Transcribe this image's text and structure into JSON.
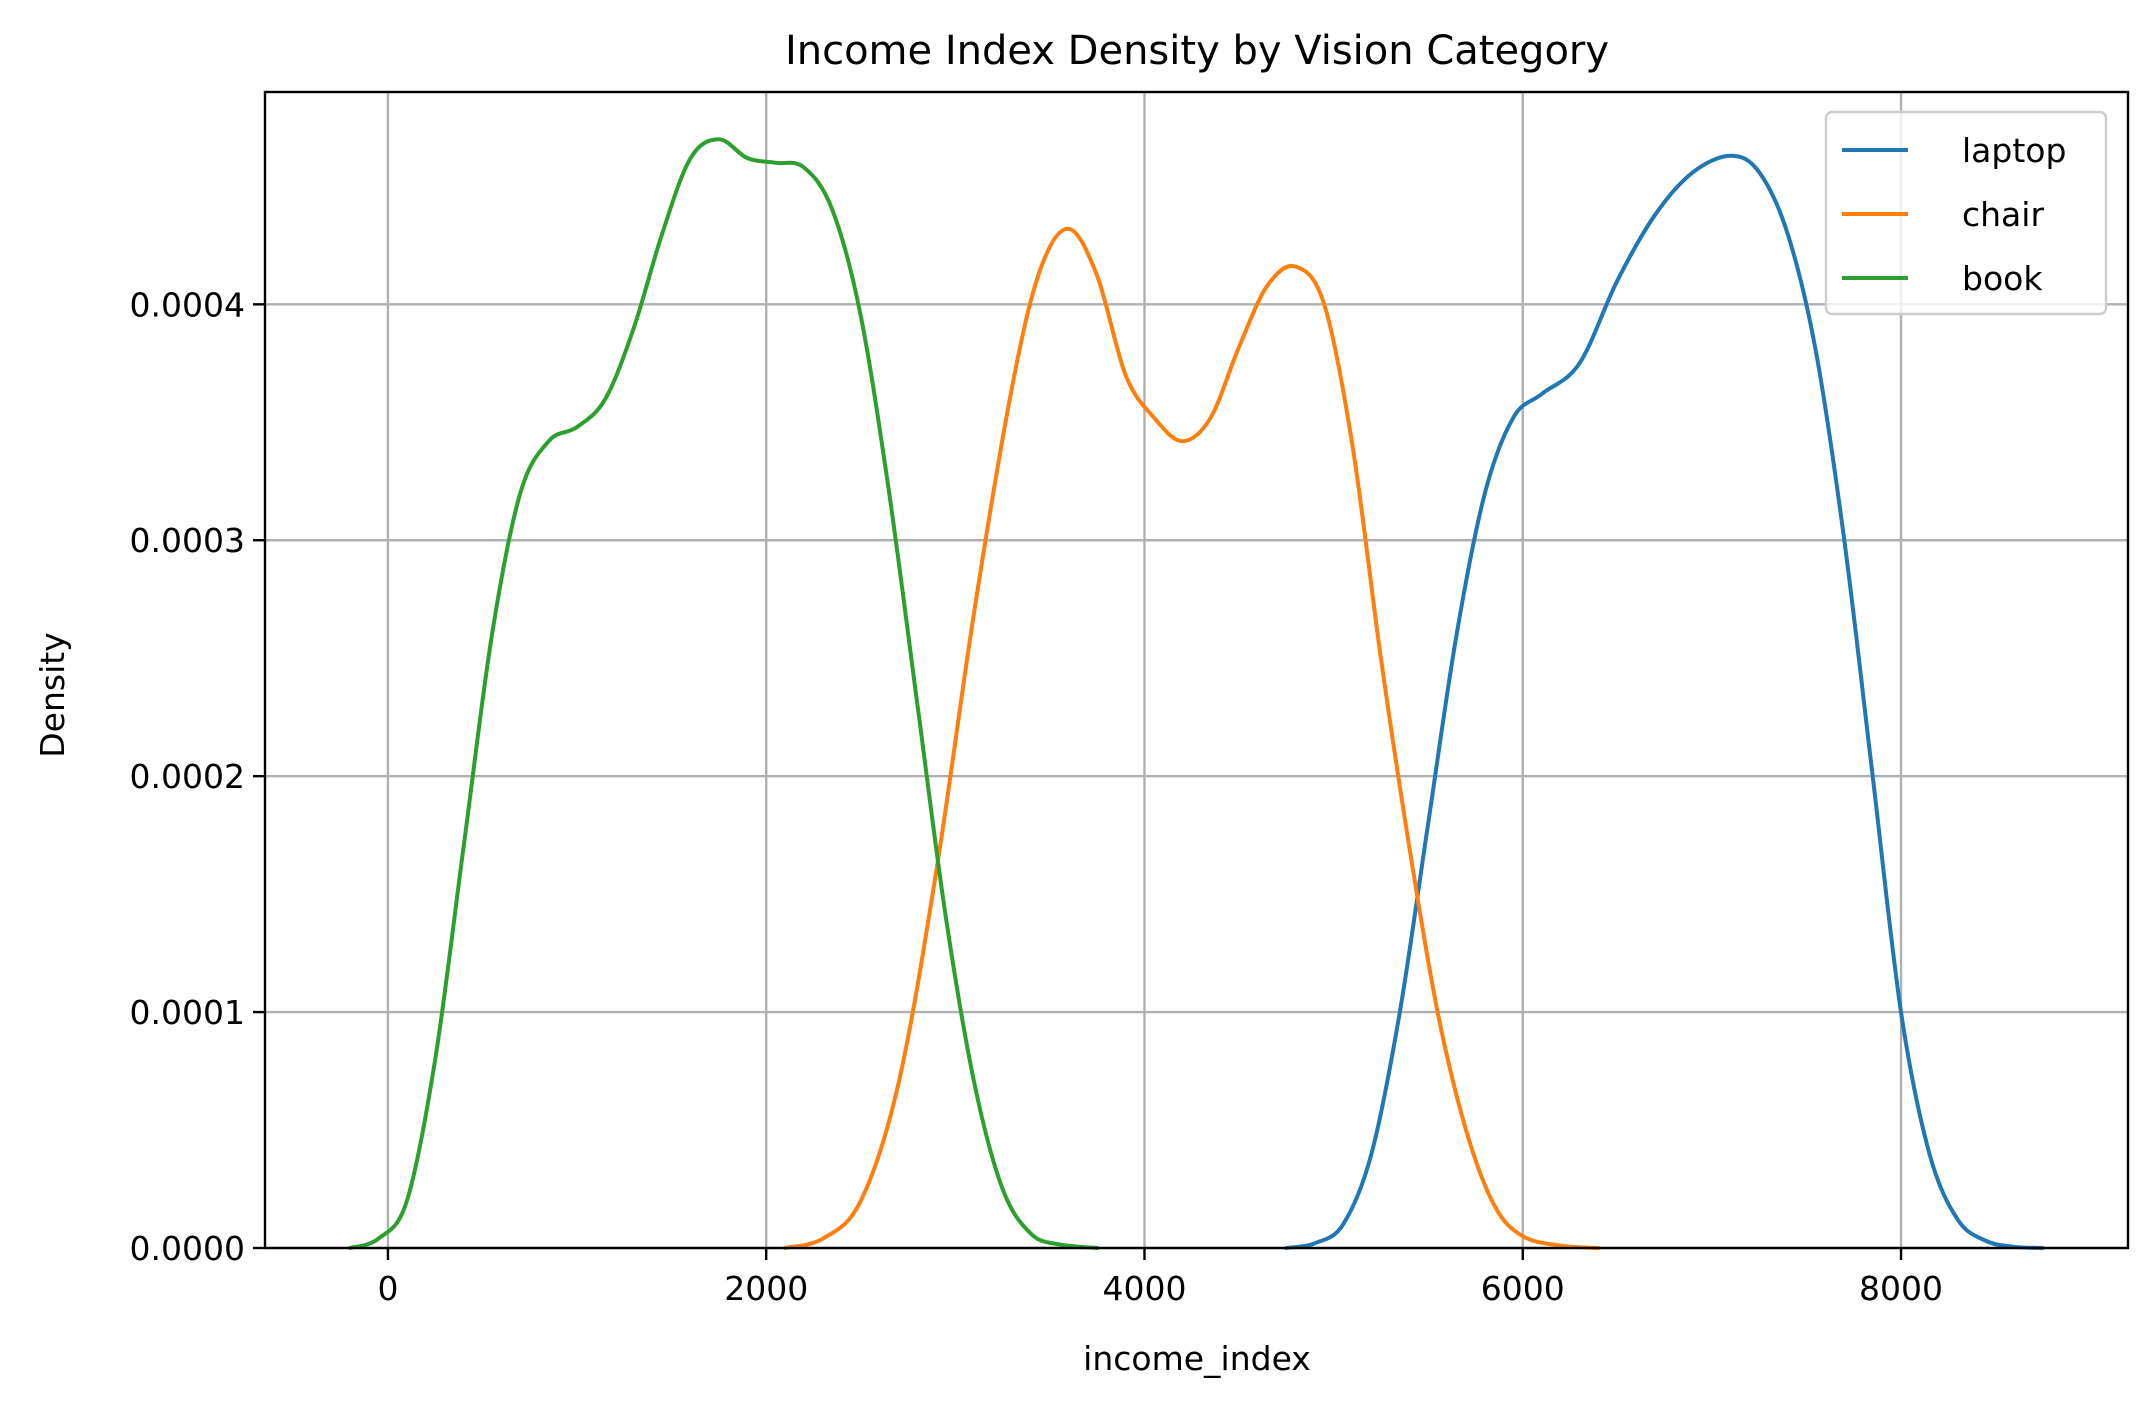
{
  "chart_data": {
    "type": "line",
    "title": "Income Index Density by Vision Category",
    "xlabel": "income_index",
    "ylabel": "Density",
    "xlim": [
      -650,
      9200
    ],
    "ylim": [
      0,
      0.00049
    ],
    "xticks": [
      0,
      2000,
      4000,
      6000,
      8000
    ],
    "xtick_labels": [
      "0",
      "2000",
      "4000",
      "6000",
      "8000"
    ],
    "yticks": [
      0,
      0.0001,
      0.0002,
      0.0003,
      0.0004
    ],
    "ytick_labels": [
      "0.0000",
      "0.0001",
      "0.0002",
      "0.0003",
      "0.0004"
    ],
    "grid": true,
    "legend_position": "top-right",
    "series": [
      {
        "name": "laptop",
        "color": "#1f77b4",
        "x": [
          4750,
          4900,
          5050,
          5200,
          5350,
          5500,
          5650,
          5800,
          5950,
          6100,
          6300,
          6500,
          6700,
          6900,
          7100,
          7250,
          7400,
          7550,
          7700,
          7850,
          8000,
          8150,
          8300,
          8450,
          8600,
          8750
        ],
        "y": [
          0.0,
          2e-06,
          1e-05,
          4e-05,
          0.0001,
          0.00018,
          0.00026,
          0.00032,
          0.000352,
          0.000362,
          0.000375,
          0.00041,
          0.000438,
          0.000456,
          0.000463,
          0.000456,
          0.00043,
          0.00038,
          0.0003,
          0.0002,
          0.0001,
          4e-05,
          1.2e-05,
          3e-06,
          5e-07,
          0.0
        ]
      },
      {
        "name": "chair",
        "color": "#ff7f0e",
        "x": [
          2100,
          2300,
          2500,
          2700,
          2900,
          3100,
          3300,
          3450,
          3600,
          3750,
          3900,
          4050,
          4200,
          4350,
          4500,
          4650,
          4800,
          4950,
          5100,
          5250,
          5400,
          5550,
          5700,
          5850,
          6000,
          6200,
          6400
        ],
        "y": [
          0.0,
          4e-06,
          2e-05,
          7e-05,
          0.00016,
          0.00027,
          0.000365,
          0.000415,
          0.000432,
          0.000412,
          0.00037,
          0.000352,
          0.000342,
          0.000352,
          0.000382,
          0.000408,
          0.000416,
          0.0004,
          0.00034,
          0.00025,
          0.00017,
          0.0001,
          5e-05,
          1.8e-05,
          5e-06,
          1e-06,
          0.0
        ]
      },
      {
        "name": "book",
        "color": "#2ca02c",
        "x": [
          -200,
          -50,
          100,
          250,
          400,
          550,
          700,
          850,
          1000,
          1150,
          1300,
          1450,
          1600,
          1750,
          1900,
          2050,
          2200,
          2350,
          2500,
          2650,
          2800,
          2950,
          3100,
          3250,
          3400,
          3550,
          3750
        ],
        "y": [
          0.0,
          4e-06,
          2e-05,
          8e-05,
          0.00017,
          0.00026,
          0.00032,
          0.000342,
          0.000348,
          0.00036,
          0.00039,
          0.00043,
          0.000462,
          0.00047,
          0.000462,
          0.00046,
          0.000458,
          0.00044,
          0.000395,
          0.00032,
          0.00023,
          0.00014,
          7e-05,
          2.5e-05,
          6e-06,
          1.5e-06,
          0.0
        ]
      }
    ]
  }
}
